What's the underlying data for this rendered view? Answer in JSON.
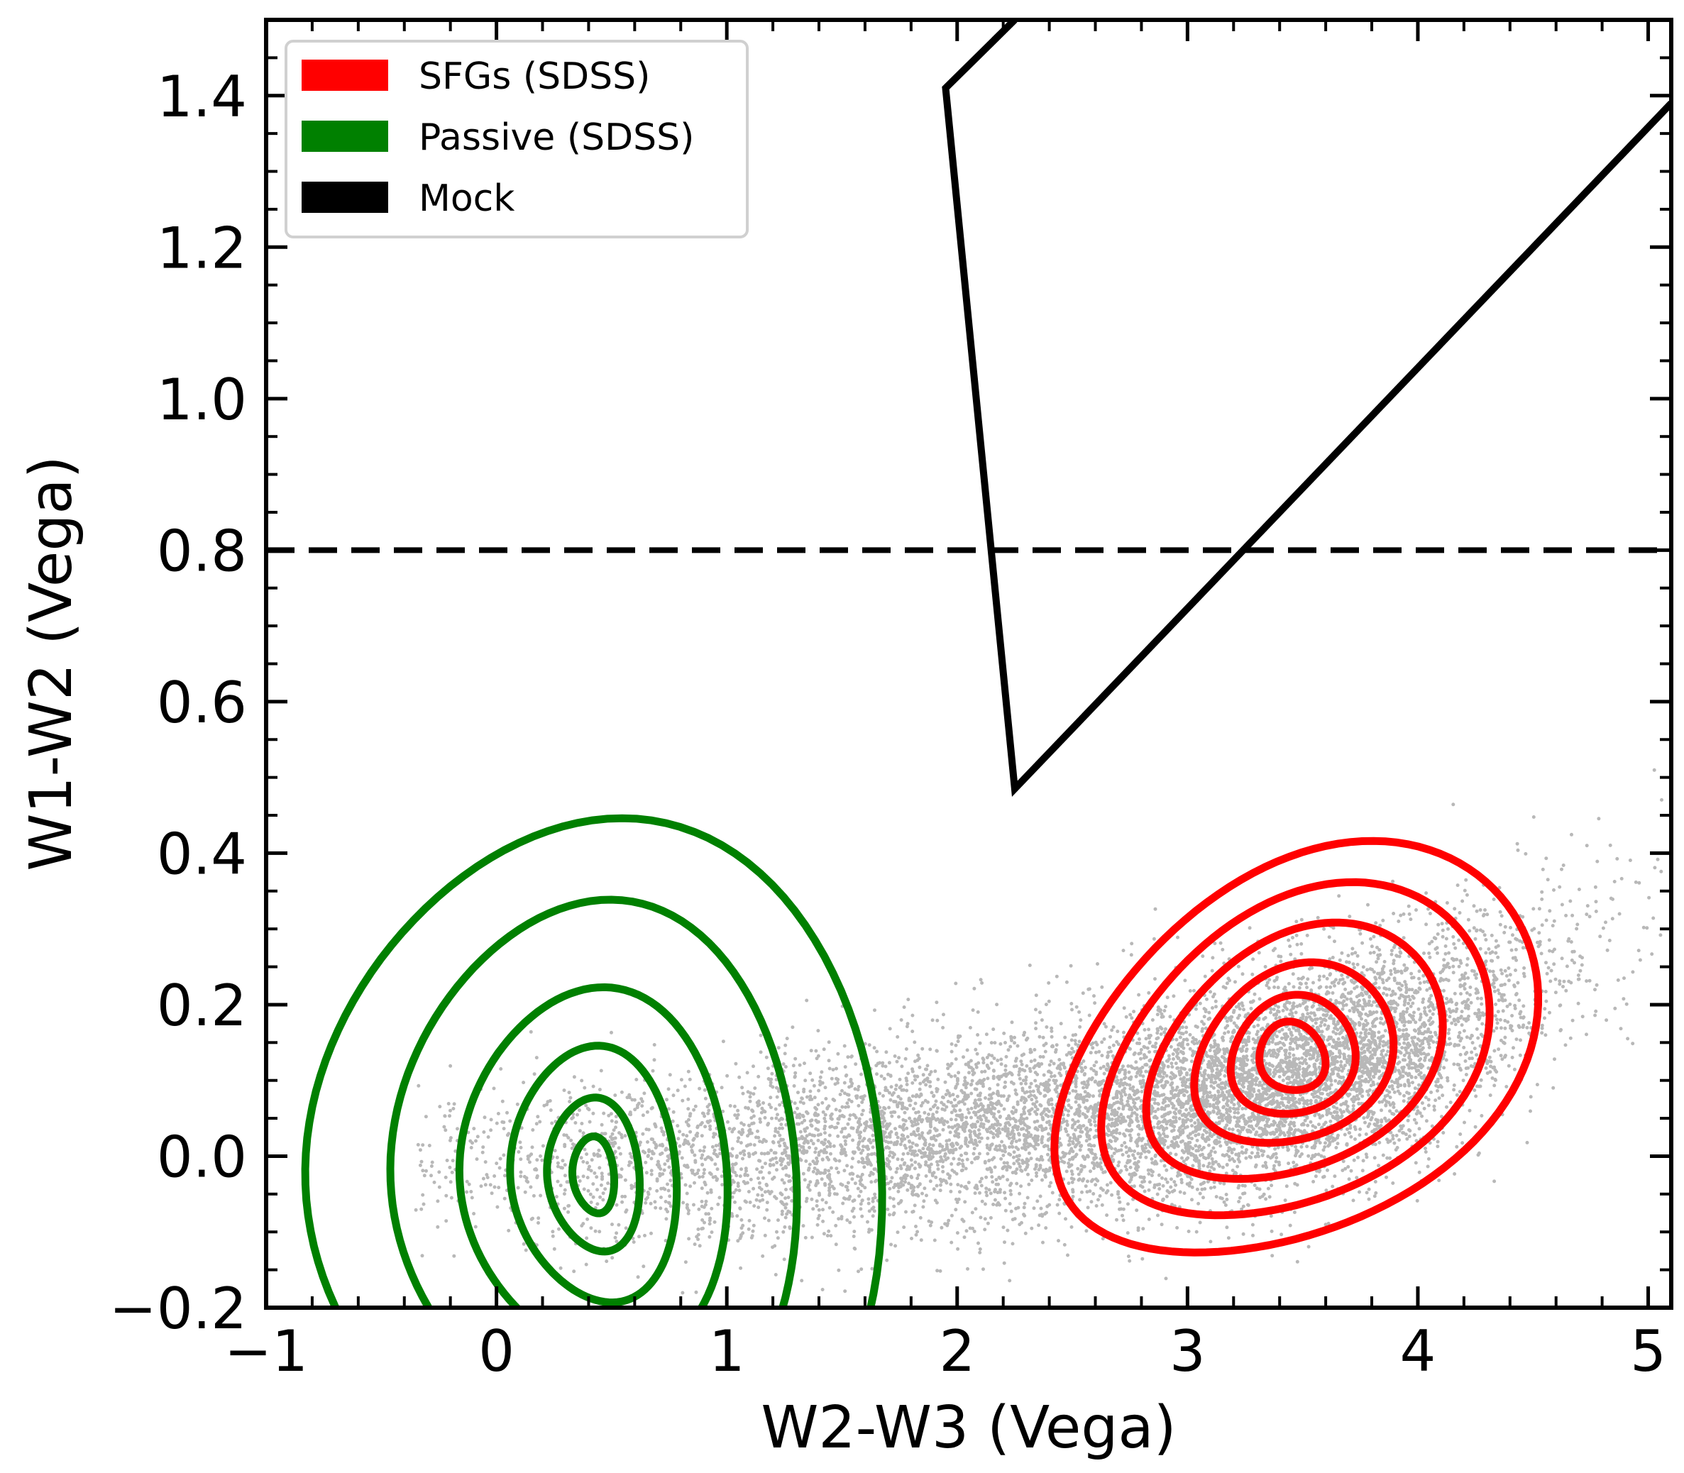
{
  "chart_data": {
    "type": "scatter",
    "xlabel": "W2-W3 (Vega)",
    "ylabel": "W1-W2 (Vega)",
    "xlim": [
      -1.0,
      5.1
    ],
    "ylim": [
      -0.2,
      1.5
    ],
    "xticks": [
      -1,
      0,
      1,
      2,
      3,
      4,
      5
    ],
    "xtick_labels": [
      "−1",
      "0",
      "1",
      "2",
      "3",
      "4",
      "5"
    ],
    "yticks": [
      -0.2,
      0.0,
      0.2,
      0.4,
      0.6,
      0.8,
      1.0,
      1.2,
      1.4
    ],
    "ytick_labels": [
      "−0.2",
      "0.0",
      "0.2",
      "0.4",
      "0.6",
      "0.8",
      "1.0",
      "1.2",
      "1.4"
    ],
    "legend_position": "top-left",
    "legend": [
      {
        "label": "SFGs (SDSS)",
        "color": "#ff0000"
      },
      {
        "label": "Passive (SDSS)",
        "color": "#008000"
      },
      {
        "label": "Mock",
        "color": "#000000"
      }
    ],
    "mock_scatter": {
      "color": "#000000",
      "n_points": 9000,
      "x_range": [
        -0.35,
        5.1
      ],
      "mean_relation": [
        [
          -0.3,
          -0.01
        ],
        [
          1.0,
          0.0
        ],
        [
          2.0,
          0.03
        ],
        [
          3.0,
          0.07
        ],
        [
          4.0,
          0.15
        ],
        [
          5.0,
          0.32
        ]
      ],
      "y_scatter": 0.07
    },
    "threshold_line": {
      "y": 0.8,
      "style": "dashed",
      "color": "#000000"
    },
    "wedge": {
      "color": "#000000",
      "points": [
        [
          2.25,
          1.5
        ],
        [
          1.95,
          1.41
        ],
        [
          2.25,
          0.485
        ],
        [
          5.1,
          1.39
        ]
      ]
    },
    "contours": {
      "sfg": {
        "color": "#ff0000",
        "center": [
          3.45,
          0.13
        ],
        "levels": [
          {
            "half_width": 1.15,
            "half_height": 0.055,
            "angle_deg": 33
          },
          {
            "half_width": 0.92,
            "half_height": 0.045,
            "angle_deg": 33
          },
          {
            "half_width": 0.7,
            "half_height": 0.035,
            "angle_deg": 33
          },
          {
            "half_width": 0.46,
            "half_height": 0.026,
            "angle_deg": 33
          },
          {
            "half_width": 0.28,
            "half_height": 0.018,
            "angle_deg": 33
          },
          {
            "half_width": 0.14,
            "half_height": 0.011,
            "angle_deg": 33
          }
        ]
      },
      "passive": {
        "color": "#008000",
        "center": [
          0.42,
          -0.025
        ],
        "levels": [
          {
            "half_width": 1.25,
            "half_height": 0.11,
            "angle_deg": 5
          },
          {
            "half_width": 0.88,
            "half_height": 0.085,
            "angle_deg": 5
          },
          {
            "half_width": 0.58,
            "half_height": 0.058,
            "angle_deg": 5
          },
          {
            "half_width": 0.36,
            "half_height": 0.04,
            "angle_deg": 5
          },
          {
            "half_width": 0.2,
            "half_height": 0.024,
            "angle_deg": 5
          },
          {
            "half_width": 0.09,
            "half_height": 0.012,
            "angle_deg": 5
          }
        ]
      }
    }
  }
}
